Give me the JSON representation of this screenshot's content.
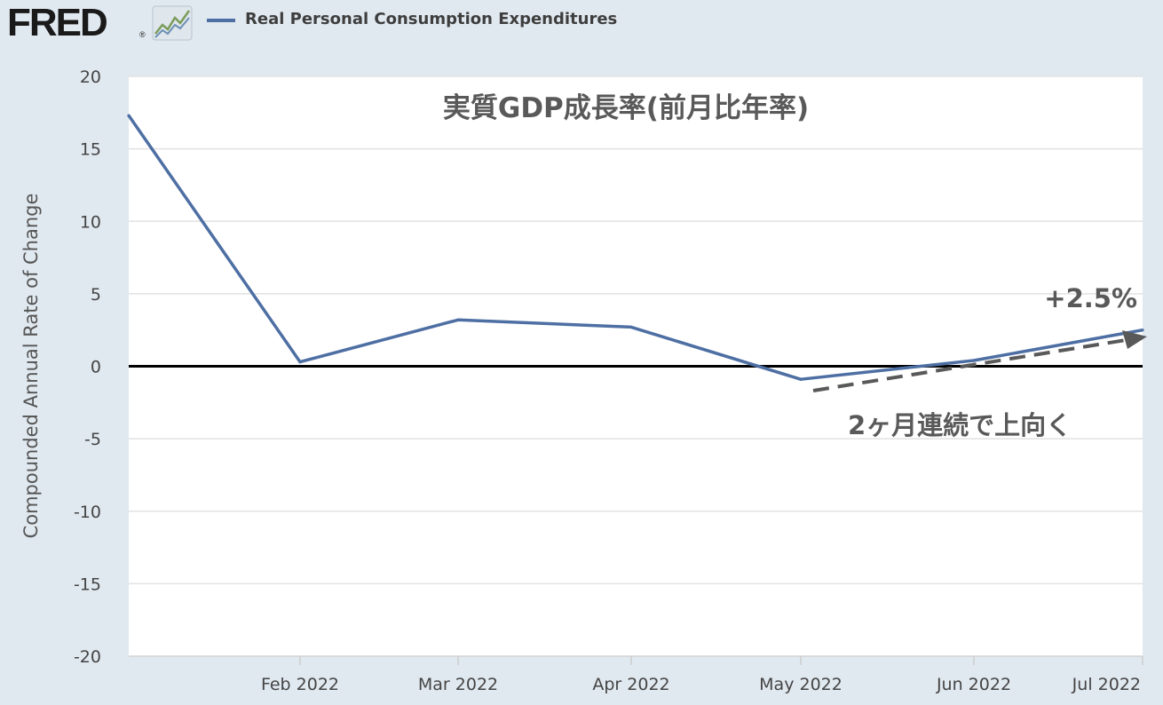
{
  "header": {
    "logo_text": "FRED",
    "logo_reg": "®",
    "logo_icon": "chart-line-icon",
    "legend_label": "Real Personal Consumption Expenditures",
    "legend_color": "#4e6fa3"
  },
  "chart_data": {
    "type": "line",
    "title": "実質GDP成長率(前月比年率)",
    "ylabel": "Compounded Annual Rate of Change",
    "ylim": [
      -20,
      20
    ],
    "yticks": [
      20,
      15,
      10,
      5,
      0,
      -5,
      -10,
      -15,
      -20
    ],
    "xticks": [
      "Feb 2022",
      "Mar 2022",
      "Apr 2022",
      "May 2022",
      "Jun 2022",
      "Jul 2022"
    ],
    "grid": true,
    "series": [
      {
        "name": "Real Personal Consumption Expenditures",
        "color": "#4e6fa3",
        "x": [
          "2022-01",
          "2022-02",
          "2022-03",
          "2022-04",
          "2022-05",
          "2022-06",
          "2022-07"
        ],
        "values": [
          17.3,
          0.3,
          3.2,
          2.7,
          -0.9,
          0.4,
          2.5
        ]
      }
    ],
    "annotations": {
      "value_label": "+2.5%",
      "trend_label": "2ヶ月連続で上向く",
      "trend_arrow_color": "#595959"
    }
  }
}
